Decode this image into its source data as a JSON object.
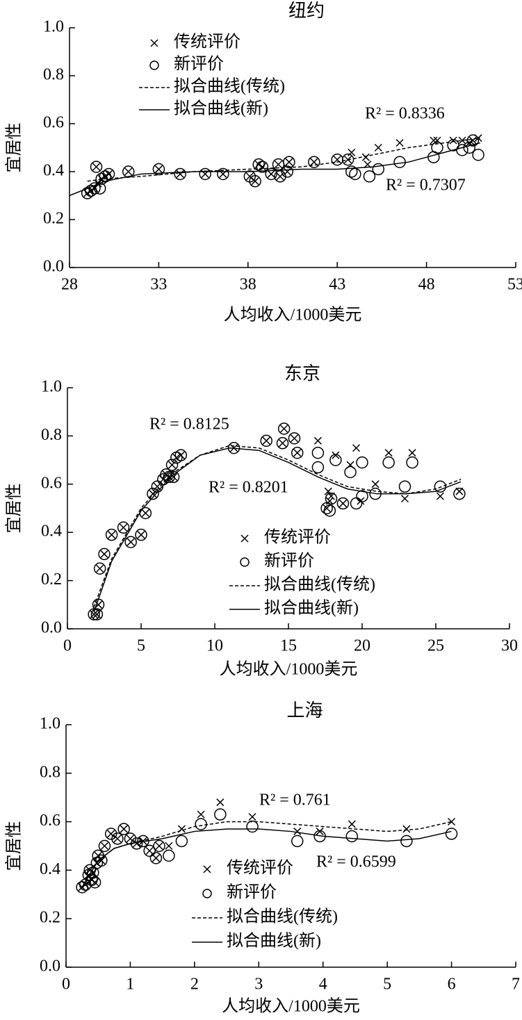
{
  "chart_data": [
    {
      "type": "scatter",
      "title": "纽约",
      "x_label": "人均收入/1000美元",
      "y_label": "宜居性",
      "xlim": [
        28,
        53
      ],
      "xticks": [
        28,
        33,
        38,
        43,
        48,
        53
      ],
      "ylim": [
        0,
        1
      ],
      "yticks": [
        {
          "value": 0,
          "label": "0.0"
        },
        {
          "value": 0.2,
          "label": "0.2"
        },
        {
          "value": 0.4,
          "label": "0.4"
        },
        {
          "value": 0.6,
          "label": "0.6"
        },
        {
          "value": 0.8,
          "label": "0.8"
        },
        {
          "value": 1,
          "label": "1.0"
        }
      ],
      "annotations": [
        "R² = 0.8336",
        "R² = 0.7307"
      ],
      "series": [
        {
          "name": "传统评价",
          "style": "x",
          "color": "#000000",
          "x": [
            29,
            29.2,
            29.4,
            29.6,
            29.8,
            30,
            30.2,
            29.5,
            31.3,
            33,
            34.2,
            35.6,
            36.6,
            38.1,
            38.4,
            38.6,
            38.8,
            39.3,
            39.7,
            39.8,
            40.2,
            40.3,
            41.7,
            43,
            43.6,
            43.8,
            44.6,
            44.7,
            45.3,
            46.5,
            48.4,
            48.6,
            49.5,
            50,
            50.4,
            50.6,
            50.9
          ],
          "values": [
            0.31,
            0.32,
            0.33,
            0.35,
            0.37,
            0.38,
            0.39,
            0.42,
            0.4,
            0.41,
            0.39,
            0.39,
            0.39,
            0.38,
            0.36,
            0.43,
            0.42,
            0.39,
            0.43,
            0.38,
            0.4,
            0.44,
            0.44,
            0.45,
            0.45,
            0.48,
            0.46,
            0.43,
            0.5,
            0.52,
            0.53,
            0.53,
            0.53,
            0.53,
            0.52,
            0.53,
            0.54
          ]
        },
        {
          "name": "新评价",
          "style": "circle",
          "color": "#000000",
          "x": [
            29,
            29.2,
            29.4,
            29.5,
            29.7,
            29.8,
            30,
            30.2,
            31.3,
            33,
            34.2,
            35.6,
            36.6,
            38.1,
            38.4,
            38.6,
            38.8,
            39.3,
            39.7,
            39.8,
            40.2,
            40.3,
            41.7,
            43,
            43.6,
            43.8,
            44,
            44.8,
            45.3,
            46.5,
            48.4,
            48.6,
            49.5,
            50,
            50.4,
            50.6,
            50.9
          ],
          "values": [
            0.31,
            0.32,
            0.33,
            0.42,
            0.33,
            0.37,
            0.38,
            0.39,
            0.4,
            0.41,
            0.39,
            0.39,
            0.39,
            0.38,
            0.36,
            0.43,
            0.42,
            0.39,
            0.43,
            0.38,
            0.4,
            0.44,
            0.44,
            0.45,
            0.45,
            0.4,
            0.39,
            0.38,
            0.41,
            0.44,
            0.46,
            0.5,
            0.51,
            0.49,
            0.5,
            0.53,
            0.47
          ]
        },
        {
          "name": "拟合曲线(传统)",
          "style": "dashed",
          "color": "#000000",
          "x": [
            29,
            30,
            32,
            35,
            38,
            41,
            43,
            45,
            47,
            49,
            51
          ],
          "values": [
            0.36,
            0.37,
            0.38,
            0.4,
            0.41,
            0.42,
            0.44,
            0.47,
            0.5,
            0.52,
            0.54
          ]
        },
        {
          "name": "拟合曲线(新)",
          "style": "solid",
          "color": "#000000",
          "x": [
            28,
            29,
            30,
            32,
            35,
            38,
            41,
            43,
            45,
            47,
            49,
            51
          ],
          "values": [
            0.3,
            0.33,
            0.36,
            0.39,
            0.4,
            0.4,
            0.41,
            0.41,
            0.42,
            0.44,
            0.48,
            0.52
          ]
        }
      ]
    },
    {
      "type": "scatter",
      "title": "东京",
      "x_label": "人均收入/1000美元",
      "y_label": "宜居性",
      "xlim": [
        0,
        30
      ],
      "xticks": [
        0,
        5,
        10,
        15,
        20,
        25,
        30
      ],
      "ylim": [
        0,
        1
      ],
      "yticks": [
        {
          "value": 0,
          "label": "0.0"
        },
        {
          "value": 0.2,
          "label": "0.2"
        },
        {
          "value": 0.4,
          "label": "0.4"
        },
        {
          "value": 0.6,
          "label": "0.6"
        },
        {
          "value": 0.8,
          "label": "0.8"
        },
        {
          "value": 1,
          "label": "1.0"
        }
      ],
      "annotations": [
        "R² = 0.8125",
        "R² = 0.8201"
      ],
      "series": [
        {
          "name": "传统评价",
          "style": "x",
          "color": "#000000",
          "x": [
            1.8,
            2,
            2.1,
            2.2,
            2.5,
            3,
            3.8,
            4.3,
            5,
            5.3,
            5.8,
            6.1,
            6.5,
            6.7,
            6.9,
            7.1,
            7.2,
            7.4,
            7.7,
            11.3,
            13.5,
            14.6,
            14.7,
            15.4,
            15.6,
            17,
            17.6,
            17.7,
            17.8,
            17.9,
            18.2,
            18.7,
            19.2,
            19.6,
            19.9,
            20.9,
            21.8,
            22.9,
            23.4,
            25.3,
            26.6
          ],
          "values": [
            0.06,
            0.06,
            0.1,
            0.25,
            0.31,
            0.39,
            0.42,
            0.36,
            0.39,
            0.48,
            0.56,
            0.59,
            0.62,
            0.64,
            0.63,
            0.68,
            0.63,
            0.71,
            0.72,
            0.75,
            0.78,
            0.77,
            0.83,
            0.79,
            0.73,
            0.78,
            0.5,
            0.57,
            0.53,
            0.55,
            0.72,
            0.52,
            0.68,
            0.75,
            0.53,
            0.6,
            0.73,
            0.54,
            0.73,
            0.55,
            0.57
          ]
        },
        {
          "name": "新评价",
          "style": "circle",
          "color": "#000000",
          "x": [
            1.8,
            2,
            2.1,
            2.2,
            2.5,
            3,
            3.8,
            4.3,
            5,
            5.3,
            5.8,
            6.1,
            6.5,
            6.7,
            6.9,
            7.1,
            7.2,
            7.4,
            7.7,
            11.3,
            13.5,
            14.6,
            14.7,
            15.4,
            15.6,
            17,
            17,
            17.6,
            17.8,
            17.9,
            18.2,
            18.7,
            19.2,
            19.6,
            20,
            20,
            20.9,
            21.8,
            22.9,
            23.4,
            25.3,
            26.6
          ],
          "values": [
            0.06,
            0.06,
            0.1,
            0.25,
            0.31,
            0.39,
            0.42,
            0.36,
            0.39,
            0.48,
            0.56,
            0.59,
            0.62,
            0.64,
            0.63,
            0.68,
            0.63,
            0.71,
            0.72,
            0.75,
            0.78,
            0.77,
            0.83,
            0.79,
            0.73,
            0.67,
            0.73,
            0.5,
            0.49,
            0.54,
            0.7,
            0.52,
            0.65,
            0.52,
            0.69,
            0.55,
            0.56,
            0.69,
            0.59,
            0.69,
            0.59,
            0.56
          ]
        },
        {
          "name": "拟合曲线(传统)",
          "style": "dashed",
          "color": "#000000",
          "x": [
            1.8,
            3,
            5,
            7,
            9,
            11,
            13,
            15,
            17,
            19,
            21,
            23,
            25,
            26.7
          ],
          "values": [
            0.09,
            0.29,
            0.5,
            0.64,
            0.72,
            0.76,
            0.75,
            0.7,
            0.64,
            0.59,
            0.57,
            0.56,
            0.58,
            0.62
          ]
        },
        {
          "name": "拟合曲线(新)",
          "style": "solid",
          "color": "#000000",
          "x": [
            1.8,
            3,
            5,
            7,
            9,
            11,
            13,
            15,
            17,
            19,
            21,
            23,
            25,
            26.7
          ],
          "values": [
            0.07,
            0.28,
            0.49,
            0.63,
            0.72,
            0.75,
            0.74,
            0.69,
            0.63,
            0.58,
            0.56,
            0.56,
            0.57,
            0.61
          ]
        }
      ]
    },
    {
      "type": "scatter",
      "title": "上海",
      "x_label": "人均收入/1000美元",
      "y_label": "宜居性",
      "xlim": [
        0,
        7
      ],
      "xticks": [
        0,
        1,
        2,
        3,
        4,
        5,
        6,
        7
      ],
      "ylim": [
        0,
        1
      ],
      "yticks": [
        {
          "value": 0,
          "label": "0.0"
        },
        {
          "value": 0.2,
          "label": "0.2"
        },
        {
          "value": 0.4,
          "label": "0.4"
        },
        {
          "value": 0.6,
          "label": "0.6"
        },
        {
          "value": 0.8,
          "label": "0.8"
        },
        {
          "value": 1,
          "label": "1.0"
        }
      ],
      "annotations": [
        "R² = 0.761",
        "R² = 0.6599"
      ],
      "series": [
        {
          "name": "传统评价",
          "style": "x",
          "color": "#000000",
          "x": [
            0.25,
            0.3,
            0.35,
            0.37,
            0.4,
            0.42,
            0.45,
            0.48,
            0.5,
            0.55,
            0.6,
            0.7,
            0.8,
            0.9,
            1.0,
            1.1,
            1.2,
            1.3,
            1.4,
            1.45,
            1.6,
            1.8,
            2.1,
            2.4,
            2.9,
            3.6,
            3.95,
            4.45,
            5.3,
            6
          ],
          "values": [
            0.33,
            0.34,
            0.38,
            0.4,
            0.36,
            0.39,
            0.35,
            0.43,
            0.46,
            0.44,
            0.5,
            0.55,
            0.53,
            0.57,
            0.53,
            0.51,
            0.52,
            0.48,
            0.45,
            0.5,
            0.5,
            0.57,
            0.63,
            0.68,
            0.62,
            0.56,
            0.56,
            0.59,
            0.57,
            0.6
          ]
        },
        {
          "name": "新评价",
          "style": "circle",
          "color": "#000000",
          "x": [
            0.25,
            0.3,
            0.35,
            0.37,
            0.4,
            0.42,
            0.45,
            0.48,
            0.5,
            0.55,
            0.6,
            0.7,
            0.8,
            0.9,
            1.0,
            1.1,
            1.2,
            1.3,
            1.4,
            1.45,
            1.6,
            1.8,
            2.1,
            2.4,
            2.9,
            3.6,
            3.95,
            4.45,
            5.3,
            6
          ],
          "values": [
            0.33,
            0.34,
            0.38,
            0.4,
            0.36,
            0.39,
            0.35,
            0.43,
            0.46,
            0.44,
            0.5,
            0.55,
            0.53,
            0.57,
            0.53,
            0.51,
            0.52,
            0.48,
            0.45,
            0.5,
            0.46,
            0.52,
            0.59,
            0.63,
            0.58,
            0.52,
            0.54,
            0.54,
            0.52,
            0.55
          ]
        },
        {
          "name": "拟合曲线(传统)",
          "style": "dashed",
          "color": "#000000",
          "x": [
            0.25,
            0.5,
            0.75,
            1,
            1.5,
            2,
            2.5,
            3,
            3.5,
            4,
            4.5,
            5,
            5.5,
            6
          ],
          "values": [
            0.33,
            0.44,
            0.49,
            0.51,
            0.54,
            0.58,
            0.6,
            0.6,
            0.59,
            0.58,
            0.57,
            0.56,
            0.57,
            0.6
          ]
        },
        {
          "name": "拟合曲线(新)",
          "style": "solid",
          "color": "#000000",
          "x": [
            0.25,
            0.5,
            0.75,
            1,
            1.5,
            2,
            2.5,
            3,
            3.5,
            4,
            4.5,
            5,
            5.5,
            6
          ],
          "values": [
            0.33,
            0.44,
            0.49,
            0.51,
            0.53,
            0.56,
            0.57,
            0.57,
            0.56,
            0.54,
            0.53,
            0.52,
            0.53,
            0.56
          ]
        }
      ]
    }
  ]
}
